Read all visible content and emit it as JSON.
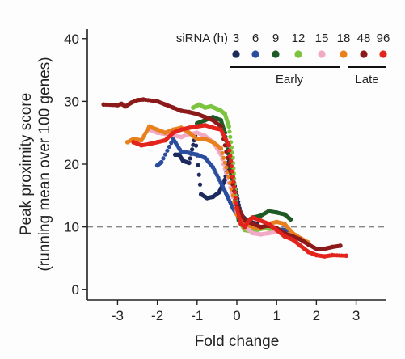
{
  "chart_data": {
    "type": "scatter",
    "title": "",
    "xlabel": "Fold change",
    "ylabel_line1": "Peak proximity score",
    "ylabel_line2": "(running mean over 100 genes)",
    "xlim": [
      -3.7,
      3.7
    ],
    "ylim": [
      -1,
      41
    ],
    "xticks": [
      -3,
      -2,
      -1,
      0,
      1,
      2,
      3
    ],
    "yticks": [
      0,
      10,
      20,
      30,
      40
    ],
    "reference_line": {
      "y": 10,
      "style": "dashed",
      "color": "#888888"
    },
    "legend": {
      "title": "siRNA (h)",
      "placement": "top-right",
      "groups": [
        {
          "label": "Early",
          "series": [
            "3",
            "6",
            "9",
            "12",
            "15",
            "18"
          ]
        },
        {
          "label": "Late",
          "series": [
            "48",
            "96"
          ]
        }
      ]
    },
    "series": [
      {
        "name": "3",
        "color": "#1c2a5e",
        "x": [
          -1.55,
          -1.45,
          -1.35,
          -1.2,
          -1.05,
          -0.9,
          -0.75,
          -0.6,
          -0.45,
          -0.3,
          -0.2,
          -0.1,
          0.0,
          0.1,
          0.25,
          0.5
        ],
        "y": [
          21.5,
          21.5,
          20.5,
          20.2,
          24.5,
          15.2,
          14.6,
          14.8,
          15.5,
          17.5,
          20.8,
          18.0,
          15.0,
          12.0,
          11.0,
          10.5
        ]
      },
      {
        "name": "6",
        "color": "#2a4d9e",
        "x": [
          -2.0,
          -1.9,
          -1.6,
          -1.4,
          -1.2,
          -1.0,
          -0.8,
          -0.6,
          -0.4,
          -0.25,
          -0.1,
          0.05,
          0.2,
          0.4,
          0.7,
          1.0,
          1.3
        ],
        "y": [
          19.8,
          20.3,
          24.0,
          22.0,
          21.8,
          21.5,
          21.0,
          19.5,
          17.0,
          15.0,
          13.0,
          11.5,
          10.5,
          10.0,
          9.8,
          9.6,
          9.5
        ]
      },
      {
        "name": "9",
        "color": "#1e5a24",
        "x": [
          -1.0,
          -0.8,
          -0.6,
          -0.4,
          -0.3,
          -0.2,
          -0.1,
          0.0,
          0.05,
          0.2,
          0.4,
          0.6,
          0.8,
          1.0,
          1.2,
          1.35
        ],
        "y": [
          26.5,
          27.0,
          27.5,
          27.0,
          25.0,
          21.0,
          16.0,
          12.5,
          11.0,
          10.8,
          11.5,
          11.8,
          12.5,
          12.3,
          12.0,
          11.2
        ]
      },
      {
        "name": "12",
        "color": "#7cc43f",
        "x": [
          -1.1,
          -0.95,
          -0.8,
          -0.65,
          -0.5,
          -0.4,
          -0.3,
          -0.2,
          -0.1,
          -0.05,
          0.0,
          0.1,
          0.2,
          0.35,
          0.5,
          0.7,
          0.9,
          1.1
        ],
        "y": [
          29.0,
          29.5,
          29.0,
          29.2,
          28.8,
          28.5,
          28.0,
          26.0,
          21.0,
          16.0,
          13.0,
          10.5,
          9.5,
          9.3,
          9.5,
          9.8,
          9.6,
          9.2
        ]
      },
      {
        "name": "15",
        "color": "#f2a9c4",
        "x": [
          -2.2,
          -2.0,
          -1.8,
          -1.6,
          -1.4,
          -1.2,
          -1.0,
          -0.8,
          -0.6,
          -0.4,
          -0.2,
          0.0,
          0.2,
          0.4,
          0.6,
          0.8,
          1.0
        ],
        "y": [
          25.5,
          25.0,
          24.8,
          24.6,
          24.3,
          24.8,
          25.0,
          24.5,
          23.5,
          21.5,
          17.0,
          12.5,
          10.0,
          9.0,
          8.8,
          9.0,
          9.2
        ]
      },
      {
        "name": "18",
        "color": "#e8801e",
        "x": [
          -2.75,
          -2.6,
          -2.4,
          -2.2,
          -2.0,
          -1.8,
          -1.6,
          -1.4,
          -1.2,
          -1.0,
          -0.8,
          -0.6,
          -0.4,
          -0.2,
          0.0,
          0.2,
          0.4,
          0.6,
          0.8,
          1.0,
          1.2,
          1.4,
          1.6,
          1.8
        ],
        "y": [
          23.5,
          24.0,
          23.8,
          26.0,
          25.5,
          25.0,
          25.5,
          25.8,
          25.0,
          24.0,
          24.0,
          23.5,
          22.5,
          18.0,
          12.0,
          10.5,
          10.0,
          9.8,
          10.5,
          10.8,
          10.5,
          9.0,
          8.2,
          7.5
        ]
      },
      {
        "name": "48",
        "color": "#8c1a1a",
        "x": [
          -3.35,
          -3.0,
          -2.9,
          -2.8,
          -2.65,
          -2.5,
          -2.35,
          -2.0,
          -1.8,
          -1.6,
          -1.4,
          -1.2,
          -1.0,
          -0.8,
          -0.6,
          -0.4,
          -0.2,
          0.0,
          0.2,
          0.4,
          0.6,
          0.8,
          1.0,
          1.2,
          1.4,
          1.6,
          1.8,
          2.0,
          2.2,
          2.4,
          2.6
        ],
        "y": [
          29.5,
          29.4,
          29.6,
          29.2,
          29.8,
          30.2,
          30.3,
          30.0,
          29.5,
          29.0,
          28.5,
          28.3,
          28.0,
          27.5,
          27.0,
          26.0,
          20.0,
          13.5,
          11.0,
          10.5,
          10.0,
          10.2,
          9.8,
          9.0,
          8.5,
          8.0,
          7.2,
          6.5,
          6.5,
          6.8,
          7.0
        ]
      },
      {
        "name": "96",
        "color": "#e3241c",
        "x": [
          -2.6,
          -2.4,
          -2.2,
          -2.0,
          -1.8,
          -1.6,
          -1.4,
          -1.2,
          -1.0,
          -0.8,
          -0.6,
          -0.4,
          -0.2,
          -0.1,
          0.0,
          0.1,
          0.2,
          0.3,
          0.4,
          0.6,
          0.8,
          1.0,
          1.2,
          1.4,
          1.6,
          1.8,
          2.0,
          2.2,
          2.4,
          2.75
        ],
        "y": [
          23.5,
          23.0,
          23.2,
          23.5,
          23.8,
          25.0,
          25.5,
          25.8,
          26.0,
          26.2,
          25.8,
          25.5,
          23.0,
          18.0,
          13.0,
          10.5,
          10.0,
          11.0,
          11.5,
          11.0,
          10.5,
          9.5,
          8.5,
          8.0,
          7.0,
          6.0,
          5.5,
          5.3,
          5.5,
          5.4
        ]
      }
    ]
  }
}
